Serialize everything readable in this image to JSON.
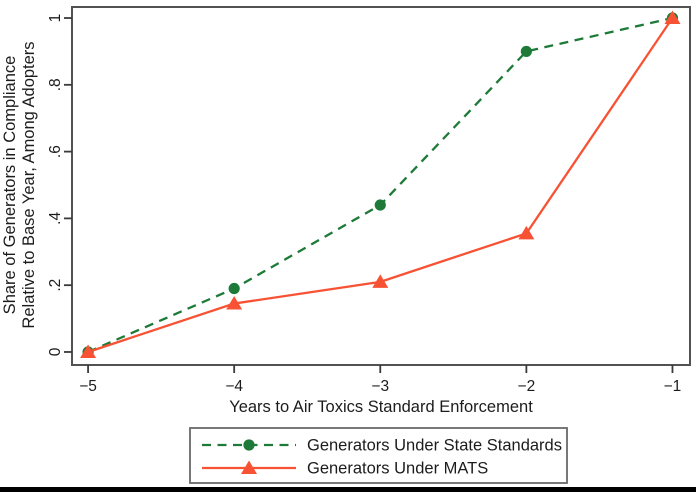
{
  "figure": {
    "background_color": "#ffffff",
    "plot_border_color": "#525252",
    "tick_color": "#3a3a3a",
    "text_color": "#1c1c1c",
    "legend_border_color": "#6a6a6a",
    "bottom_rule_color": "#000000"
  },
  "chart_data": {
    "type": "line",
    "title": "",
    "xlabel": "Years to Air Toxics Standard Enforcement",
    "ylabel_line1": "Share of Generators in Compliance",
    "ylabel_line2": "Relative to Base Year, Among Adopters",
    "x": [
      -5,
      -4,
      -3,
      -2,
      -1
    ],
    "x_tick_labels": [
      "−5",
      "−4",
      "−3",
      "−2",
      "−1"
    ],
    "y_ticks": [
      0,
      0.2,
      0.4,
      0.6,
      0.8,
      1
    ],
    "y_tick_labels": [
      "0",
      ".2",
      ".4",
      ".6",
      ".8",
      "1"
    ],
    "xlim": [
      -5.11,
      -0.88
    ],
    "ylim": [
      -0.039,
      1.033
    ],
    "grid": false,
    "legend_position": "bottom-center",
    "series": [
      {
        "name": "Generators Under State Standards",
        "color": "#1e7a38",
        "line_style": "dashed",
        "marker": "circle",
        "values": [
          0,
          0.19,
          0.44,
          0.9,
          1
        ]
      },
      {
        "name": "Generators Under MATS",
        "color": "#f85234",
        "line_style": "solid",
        "marker": "triangle",
        "values": [
          0,
          0.145,
          0.21,
          0.355,
          1
        ]
      }
    ]
  }
}
